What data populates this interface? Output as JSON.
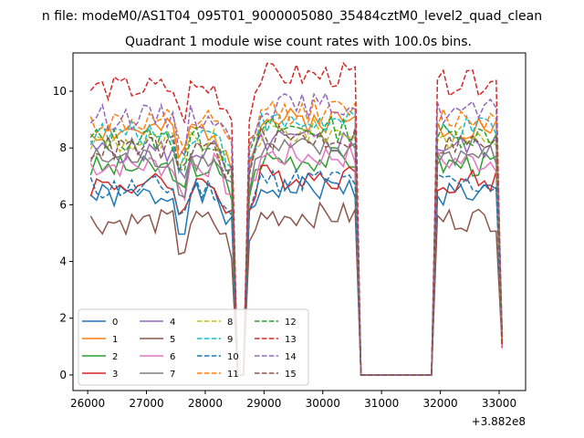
{
  "chart_data": {
    "type": "line",
    "suptitle": "n file: modeM0/AS1T04_095T01_9000005080_35484cztM0_level2_quad_clean",
    "title": "Quadrant 1 module wise count rates with 100.0s bins.",
    "xlabel": "",
    "ylabel": "",
    "x_offset_label": "+3.882e8",
    "xlim": [
      25750,
      33450
    ],
    "ylim": [
      -0.55,
      11.35
    ],
    "xticks": [
      26000,
      27000,
      28000,
      29000,
      30000,
      31000,
      32000,
      33000
    ],
    "xtick_labels": [
      "26000",
      "27000",
      "28000",
      "29000",
      "30000",
      "31000",
      "32000",
      "33000"
    ],
    "yticks": [
      0,
      2,
      4,
      6,
      8,
      10
    ],
    "ytick_labels": [
      "0",
      "2",
      "4",
      "6",
      "8",
      "10"
    ],
    "grid": false,
    "legend_position": "lower-left",
    "legend_columns": 4,
    "gti_segments": [
      {
        "x_start": 26050,
        "x_end": 28450
      },
      {
        "x_start": 28750,
        "x_end": 30550
      },
      {
        "x_start": 31950,
        "x_end": 32950
      }
    ],
    "drop_points": [
      [
        28550,
        0
      ],
      [
        28650,
        0
      ],
      [
        30650,
        0
      ],
      [
        31850,
        0
      ],
      [
        33050,
        1.0
      ]
    ],
    "series": [
      {
        "name": "0",
        "color": "#1f77b4",
        "dash": "solid",
        "level": 6.3,
        "seed": 1
      },
      {
        "name": "1",
        "color": "#ff7f0e",
        "dash": "solid",
        "level": 8.6,
        "seed": 2
      },
      {
        "name": "2",
        "color": "#2ca02c",
        "dash": "solid",
        "level": 7.3,
        "seed": 3
      },
      {
        "name": "3",
        "color": "#d62728",
        "dash": "solid",
        "level": 6.7,
        "seed": 4
      },
      {
        "name": "4",
        "color": "#9467bd",
        "dash": "solid",
        "level": 7.9,
        "seed": 5
      },
      {
        "name": "5",
        "color": "#8c564b",
        "dash": "solid",
        "level": 5.4,
        "seed": 6
      },
      {
        "name": "6",
        "color": "#e377c2",
        "dash": "solid",
        "level": 7.4,
        "seed": 7
      },
      {
        "name": "7",
        "color": "#7f7f7f",
        "dash": "solid",
        "level": 7.6,
        "seed": 8
      },
      {
        "name": "8",
        "color": "#bcbd22",
        "dash": "dashed",
        "level": 8.2,
        "seed": 9
      },
      {
        "name": "9",
        "color": "#17becf",
        "dash": "dashed",
        "level": 8.5,
        "seed": 10
      },
      {
        "name": "10",
        "color": "#1f77b4",
        "dash": "dashed",
        "level": 6.6,
        "seed": 11
      },
      {
        "name": "11",
        "color": "#ff7f0e",
        "dash": "dashed",
        "level": 8.9,
        "seed": 12
      },
      {
        "name": "12",
        "color": "#2ca02c",
        "dash": "dashed",
        "level": 8.3,
        "seed": 13
      },
      {
        "name": "13",
        "color": "#d62728",
        "dash": "dashed",
        "level": 10.1,
        "seed": 14
      },
      {
        "name": "14",
        "color": "#9467bd",
        "dash": "dashed",
        "level": 9.1,
        "seed": 15
      },
      {
        "name": "15",
        "color": "#8c564b",
        "dash": "dashed",
        "level": 8.0,
        "seed": 16
      }
    ]
  }
}
